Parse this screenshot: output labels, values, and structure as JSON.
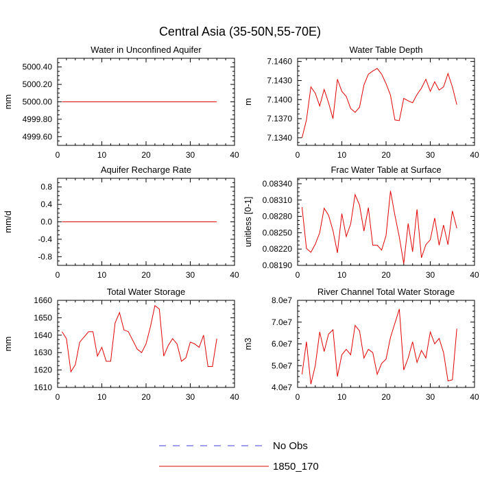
{
  "main_title": "Central Asia (35-50N,55-70E)",
  "legend": {
    "items": [
      {
        "label": "No Obs",
        "color": "#3a3ad0",
        "dash": true
      },
      {
        "label": "1850_170",
        "color": "#e00000",
        "dash": false
      }
    ]
  },
  "chart_data": [
    {
      "type": "line",
      "title": "Water in Unconfined Aquifer",
      "ylabel": "mm",
      "xlim": [
        0,
        40
      ],
      "ylim": [
        4999.5,
        5000.5
      ],
      "xticks": [
        0,
        10,
        20,
        30,
        40
      ],
      "yticks": [
        4999.6,
        4999.8,
        5000.0,
        5000.2,
        5000.4
      ],
      "ytick_labels": [
        "4999.60",
        "4999.80",
        "5000.00",
        "5000.20",
        "5000.40"
      ],
      "series": [
        {
          "name": "1850_170",
          "color": "#e00000",
          "x": [
            1,
            36
          ],
          "y": [
            5000.0,
            5000.0
          ]
        }
      ]
    },
    {
      "type": "line",
      "title": "Water Table Depth",
      "ylabel": "m",
      "xlim": [
        0,
        40
      ],
      "ylim": [
        7.1328,
        7.1465
      ],
      "xticks": [
        0,
        10,
        20,
        30,
        40
      ],
      "yticks": [
        7.134,
        7.137,
        7.14,
        7.143,
        7.146
      ],
      "ytick_labels": [
        "7.1340",
        "7.1370",
        "7.1400",
        "7.1430",
        "7.1460"
      ],
      "series": [
        {
          "name": "1850_170",
          "color": "#e00000",
          "x": [
            1,
            2,
            3,
            4,
            5,
            6,
            7,
            8,
            9,
            10,
            11,
            12,
            13,
            14,
            15,
            16,
            17,
            18,
            19,
            20,
            21,
            22,
            23,
            24,
            25,
            26,
            27,
            28,
            29,
            30,
            31,
            32,
            33,
            34,
            35,
            36
          ],
          "y": [
            7.134,
            7.1368,
            7.142,
            7.141,
            7.139,
            7.1416,
            7.1395,
            7.137,
            7.1432,
            7.1413,
            7.1405,
            7.1386,
            7.138,
            7.1388,
            7.1423,
            7.144,
            7.1445,
            7.1449,
            7.144,
            7.1425,
            7.1407,
            7.1368,
            7.1367,
            7.1402,
            7.1398,
            7.1395,
            7.1408,
            7.1418,
            7.1432,
            7.1413,
            7.1428,
            7.1415,
            7.142,
            7.1441,
            7.142,
            7.1392
          ]
        }
      ]
    },
    {
      "type": "line",
      "title": "Aquifer Recharge Rate",
      "ylabel": "mm/d",
      "xlim": [
        0,
        40
      ],
      "ylim": [
        -1.0,
        1.0
      ],
      "xticks": [
        0,
        10,
        20,
        30,
        40
      ],
      "yticks": [
        -0.8,
        -0.4,
        0.0,
        0.4,
        0.8
      ],
      "ytick_labels": [
        "-0.8",
        "-0.4",
        "0.0",
        "0.4",
        "0.8"
      ],
      "series": [
        {
          "name": "1850_170",
          "color": "#e00000",
          "x": [
            1,
            36
          ],
          "y": [
            0.0,
            0.0
          ]
        }
      ]
    },
    {
      "type": "line",
      "title": "Frac Water Table at Surface",
      "ylabel": "unitless [0-1]",
      "xlim": [
        0,
        40
      ],
      "ylim": [
        0.0819,
        0.0835
      ],
      "xticks": [
        0,
        10,
        20,
        30,
        40
      ],
      "yticks": [
        0.0819,
        0.0822,
        0.0825,
        0.0828,
        0.0831,
        0.0834
      ],
      "ytick_labels": [
        "0.08190",
        "0.08220",
        "0.08250",
        "0.08280",
        "0.08310",
        "0.08340"
      ],
      "series": [
        {
          "name": "1850_170",
          "color": "#e00000",
          "x": [
            1,
            2,
            3,
            4,
            5,
            6,
            7,
            8,
            9,
            10,
            11,
            12,
            13,
            14,
            15,
            16,
            17,
            18,
            19,
            20,
            21,
            22,
            23,
            24,
            25,
            26,
            27,
            28,
            29,
            30,
            31,
            32,
            33,
            34,
            35,
            36
          ],
          "y": [
            0.08297,
            0.08221,
            0.08214,
            0.08229,
            0.0825,
            0.08295,
            0.08282,
            0.08254,
            0.08213,
            0.08285,
            0.08243,
            0.08266,
            0.0832,
            0.08301,
            0.08253,
            0.08296,
            0.08227,
            0.08227,
            0.08218,
            0.08245,
            0.08327,
            0.08282,
            0.08242,
            0.08193,
            0.08267,
            0.08215,
            0.08293,
            0.08204,
            0.08228,
            0.08237,
            0.08277,
            0.08227,
            0.08264,
            0.08228,
            0.0829,
            0.08258
          ]
        }
      ]
    },
    {
      "type": "line",
      "title": "Total Water Storage",
      "ylabel": "mm",
      "xlim": [
        0,
        40
      ],
      "ylim": [
        1610,
        1660
      ],
      "xticks": [
        0,
        10,
        20,
        30,
        40
      ],
      "yticks": [
        1610,
        1620,
        1630,
        1640,
        1650,
        1660
      ],
      "ytick_labels": [
        "1610",
        "1620",
        "1630",
        "1640",
        "1650",
        "1660"
      ],
      "series": [
        {
          "name": "1850_170",
          "color": "#e00000",
          "x": [
            1,
            2,
            3,
            4,
            5,
            6,
            7,
            8,
            9,
            10,
            11,
            12,
            13,
            14,
            15,
            16,
            17,
            18,
            19,
            20,
            21,
            22,
            23,
            24,
            25,
            26,
            27,
            28,
            29,
            30,
            31,
            32,
            33,
            34,
            35,
            36
          ],
          "y": [
            1642,
            1638,
            1619,
            1623,
            1636,
            1639,
            1642,
            1642,
            1628,
            1633,
            1625,
            1625,
            1647,
            1653,
            1643,
            1642,
            1637,
            1632,
            1630,
            1635,
            1645,
            1657,
            1655,
            1628,
            1634,
            1638,
            1635,
            1625,
            1627,
            1636,
            1635,
            1633,
            1640,
            1622,
            1622,
            1638
          ]
        }
      ]
    },
    {
      "type": "line",
      "title": "River Channel Total Water Storage",
      "ylabel": "m3",
      "xlim": [
        0,
        40
      ],
      "ylim": [
        40000000.0,
        80000000.0
      ],
      "xticks": [
        0,
        10,
        20,
        30,
        40
      ],
      "yticks": [
        40000000.0,
        50000000.0,
        60000000.0,
        70000000.0,
        80000000.0
      ],
      "ytick_labels": [
        "4.0e7",
        "5.0e7",
        "6.0e7",
        "7.0e7",
        "8.0e7"
      ],
      "series": [
        {
          "name": "1850_170",
          "color": "#e00000",
          "x": [
            1,
            2,
            3,
            4,
            5,
            6,
            7,
            8,
            9,
            10,
            11,
            12,
            13,
            14,
            15,
            16,
            17,
            18,
            19,
            20,
            21,
            22,
            23,
            24,
            25,
            26,
            27,
            28,
            29,
            30,
            31,
            32,
            33,
            34,
            35,
            36
          ],
          "y": [
            46000000.0,
            61000000.0,
            41500000.0,
            50000000.0,
            65500000.0,
            56500000.0,
            64500000.0,
            66500000.0,
            45000000.0,
            55000000.0,
            57500000.0,
            55000000.0,
            68500000.0,
            66000000.0,
            53500000.0,
            57500000.0,
            56000000.0,
            46000000.0,
            51000000.0,
            53000000.0,
            63000000.0,
            69500000.0,
            76000000.0,
            48000000.0,
            53500000.0,
            61000000.0,
            51500000.0,
            57000000.0,
            53500000.0,
            65500000.0,
            60000000.0,
            62500000.0,
            56000000.0,
            43000000.0,
            43500000.0,
            67000000.0
          ]
        }
      ]
    }
  ]
}
